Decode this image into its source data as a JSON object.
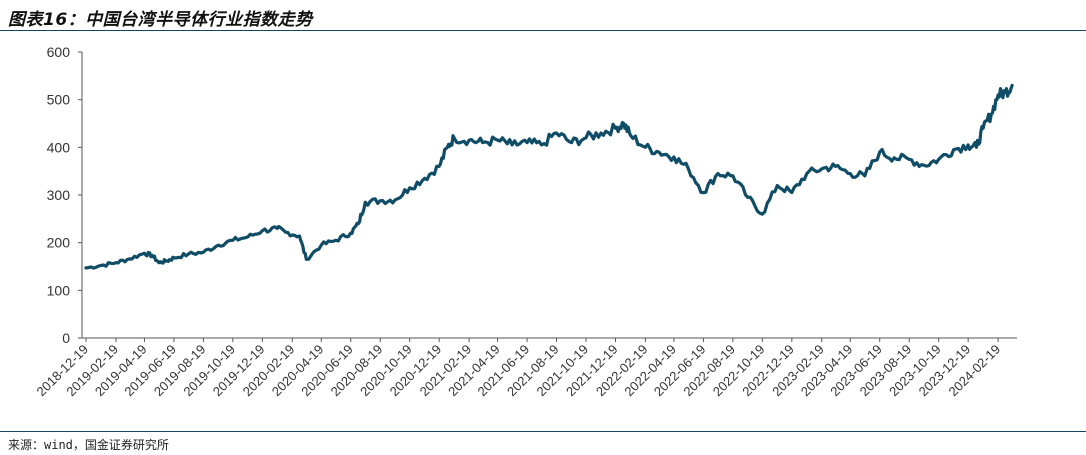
{
  "figure": {
    "title": "图表16：中国台湾半导体行业指数走势",
    "source": "来源：wind，国金证券研究所"
  },
  "colors": {
    "line": "#0f4c66",
    "axis": "#555555",
    "rule": "#16445f"
  },
  "chart_data": {
    "type": "line",
    "title": "",
    "xlabel": "",
    "ylabel": "",
    "ylim": [
      0,
      600
    ],
    "yticks": [
      "0",
      "100",
      "200",
      "300",
      "400",
      "500",
      "600"
    ],
    "grid": false,
    "legend": "none",
    "xticks": [
      "2018-12-19",
      "2019-02-19",
      "2019-04-19",
      "2019-06-19",
      "2019-08-19",
      "2019-10-19",
      "2019-12-19",
      "2020-02-19",
      "2020-04-19",
      "2020-06-19",
      "2020-08-19",
      "2020-10-19",
      "2020-12-19",
      "2021-02-19",
      "2021-04-19",
      "2021-06-19",
      "2021-08-19",
      "2021-10-19",
      "2021-12-19",
      "2022-02-19",
      "2022-04-19",
      "2022-06-19",
      "2022-08-19",
      "2022-10-19",
      "2022-12-19",
      "2023-02-19",
      "2023-04-19",
      "2023-06-19",
      "2023-08-19",
      "2023-10-19",
      "2023-12-19",
      "2024-02-19"
    ],
    "series": [
      {
        "x": [
          "2018-12-19",
          "2019-01-19",
          "2019-02-19",
          "2019-03-19",
          "2019-04-19",
          "2019-05-05",
          "2019-05-19",
          "2019-06-05",
          "2019-06-19",
          "2019-07-19",
          "2019-08-19",
          "2019-09-19",
          "2019-10-19",
          "2019-11-19",
          "2019-12-19",
          "2020-01-19",
          "2020-02-05",
          "2020-03-05",
          "2020-03-19",
          "2020-04-19",
          "2020-05-19",
          "2020-06-19",
          "2020-07-05",
          "2020-07-19",
          "2020-08-19",
          "2020-09-19",
          "2020-10-19",
          "2020-11-19",
          "2020-12-19",
          "2021-01-05",
          "2021-01-19",
          "2021-02-19",
          "2021-03-19",
          "2021-04-19",
          "2021-05-19",
          "2021-06-19",
          "2021-07-19",
          "2021-08-19",
          "2021-09-19",
          "2021-10-19",
          "2021-11-19",
          "2021-12-19",
          "2022-01-05",
          "2022-01-19",
          "2022-02-19",
          "2022-03-19",
          "2022-04-19",
          "2022-05-19",
          "2022-06-19",
          "2022-07-19",
          "2022-08-19",
          "2022-09-19",
          "2022-10-19",
          "2022-11-19",
          "2022-12-19",
          "2023-01-19",
          "2023-02-19",
          "2023-03-19",
          "2023-04-19",
          "2023-05-19",
          "2023-06-19",
          "2023-07-19",
          "2023-08-19",
          "2023-09-19",
          "2023-10-19",
          "2023-11-19",
          "2023-12-19",
          "2024-01-05",
          "2024-01-19",
          "2024-02-05",
          "2024-02-19",
          "2024-03-05",
          "2024-03-19"
        ],
        "values": [
          147,
          152,
          158,
          166,
          178,
          173,
          158,
          162,
          168,
          176,
          180,
          195,
          205,
          212,
          225,
          230,
          222,
          214,
          165,
          195,
          205,
          220,
          240,
          285,
          288,
          290,
          315,
          335,
          360,
          400,
          420,
          415,
          410,
          415,
          405,
          410,
          405,
          430,
          410,
          420,
          430,
          440,
          450,
          425,
          400,
          390,
          380,
          355,
          305,
          345,
          340,
          295,
          260,
          320,
          305,
          345,
          355,
          360,
          345,
          340,
          390,
          378,
          375,
          362,
          375,
          395,
          405,
          400,
          440,
          470,
          510,
          515,
          530
        ]
      }
    ]
  }
}
